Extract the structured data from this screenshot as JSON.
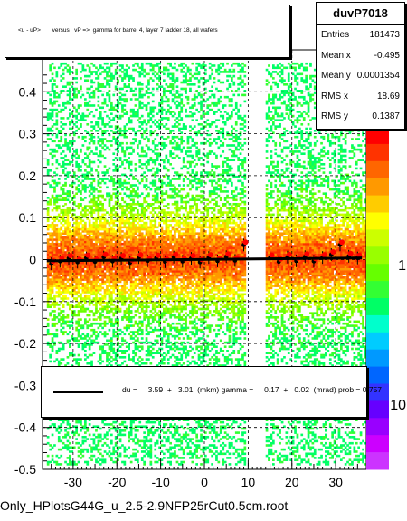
{
  "title": "<u - uP>       versus   vP =>  gamma for barrel 4, layer 7 ladder 18, all wafers",
  "stats": {
    "name": "duvP7018",
    "rows": [
      {
        "label": "Entries",
        "value": "181473"
      },
      {
        "label": "Mean x",
        "value": "-0.495"
      },
      {
        "label": "Mean y",
        "value": "0.0001354"
      },
      {
        "label": "RMS x",
        "value": "18.69"
      },
      {
        "label": "RMS y",
        "value": "0.1387"
      }
    ]
  },
  "fit": {
    "text": "du =     3.59  +   3.01  (mkm) gamma =     0.17  +   0.02  (mrad) prob = 0.757"
  },
  "file_label": "Only_HPlotsG44G_u_2.5-2.9NFP25rCut0.5cm.root",
  "chart_data": {
    "type": "heatmap",
    "title": "<u - uP>       versus   vP =>  gamma for barrel 4, layer 7 ladder 18, all wafers",
    "xlim": [
      -37,
      37
    ],
    "ylim": [
      -0.5,
      0.5
    ],
    "x_ticks": [
      -30,
      -20,
      -10,
      0,
      10,
      20,
      30
    ],
    "y_ticks": [
      -0.5,
      -0.4,
      -0.3,
      -0.2,
      -0.1,
      0,
      0.1,
      0.2,
      0.3,
      0.4
    ],
    "x_tick_labels": [
      "-30",
      "-20",
      "-10",
      "0",
      "10",
      "20",
      "30"
    ],
    "y_tick_labels": [
      "-0.5",
      "-0.4",
      "-0.3",
      "-0.2",
      "-0.1",
      "0",
      "0.1",
      "0.2",
      "0.3",
      "0.4"
    ],
    "z_scale": "log",
    "z_tick_labels": [
      "1",
      "10",
      "10"
    ],
    "populated_x_ranges": [
      [
        -36,
        9.5
      ],
      [
        14,
        37
      ]
    ],
    "grid": true,
    "profile_points": {
      "x": [
        -35,
        -33,
        -31,
        -29,
        -27,
        -25,
        -23,
        -21,
        -19,
        -17,
        -15,
        -13,
        -11,
        -9,
        -7,
        -5,
        -3,
        -1,
        1,
        3,
        5,
        7,
        9,
        15,
        17,
        19,
        21,
        23,
        25,
        27,
        29,
        31,
        33,
        35
      ],
      "y": [
        -0.01,
        -0.004,
        0.003,
        -0.006,
        0.004,
        -0.005,
        0.006,
        -0.004,
        0.003,
        -0.007,
        0.005,
        -0.003,
        0.004,
        -0.005,
        0.006,
        -0.004,
        0.003,
        -0.006,
        0.005,
        -0.003,
        0.007,
        -0.002,
        0.035,
        0.004,
        -0.005,
        0.006,
        -0.003,
        0.007,
        -0.004,
        0.005,
        0.012,
        0.035,
        0.008,
        0.004
      ]
    },
    "fit_line": {
      "x": [
        -36,
        36
      ],
      "y": [
        -0.003,
        0.004
      ]
    }
  }
}
